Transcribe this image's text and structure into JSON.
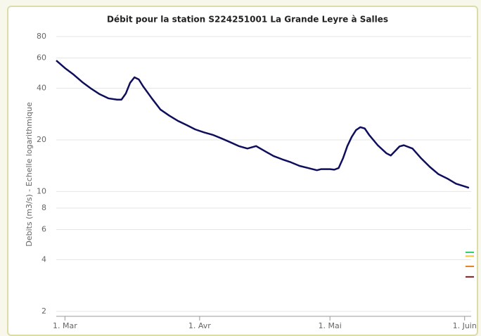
{
  "chart_data": {
    "type": "line",
    "title": "Débit pour la station S224251001 La Grande Leyre à Salles",
    "y_label": "Debits (m3/s) - Echelle logarithmique",
    "log_y": true,
    "grid": true,
    "xlim": [
      -2,
      93.5
    ],
    "xticks": [
      {
        "value": 0,
        "label": "1. Mar"
      },
      {
        "value": 31,
        "label": "1. Avr"
      },
      {
        "value": 61,
        "label": "1. Mai"
      },
      {
        "value": 92,
        "label": "1. Juin"
      }
    ],
    "ylim": [
      2,
      80
    ],
    "yticks": [
      2,
      4,
      6,
      8,
      10,
      20,
      40,
      60,
      80
    ],
    "x": [
      -2,
      0,
      2,
      4,
      6,
      8,
      10,
      12,
      13,
      14,
      15,
      16,
      17,
      18,
      20,
      22,
      24,
      26,
      28,
      30,
      32,
      34,
      36,
      38,
      40,
      42,
      44,
      46,
      48,
      50,
      52,
      54,
      56,
      58,
      59,
      61,
      62,
      63,
      64,
      65,
      66,
      67,
      68,
      69,
      70,
      72,
      74,
      75,
      76,
      77,
      78,
      80,
      82,
      84,
      86,
      88,
      90,
      92,
      93
    ],
    "series": [
      {
        "color": "#0e0e5c",
        "values": [
          58,
          52.4,
          48,
          43.4,
          39.8,
          36.9,
          34.9,
          34.3,
          34.3,
          37.2,
          43,
          46.3,
          45,
          41,
          34.9,
          30,
          27.7,
          25.8,
          24.4,
          23,
          22.1,
          21.4,
          20.4,
          19.4,
          18.4,
          17.8,
          18.4,
          17.2,
          16.1,
          15.4,
          14.8,
          14.1,
          13.7,
          13.3,
          13.5,
          13.5,
          13.4,
          13.7,
          15.6,
          18.4,
          20.8,
          22.8,
          23.7,
          23.3,
          21.4,
          18.6,
          16.7,
          16.2,
          17.2,
          18.3,
          18.6,
          17.8,
          15.6,
          13.9,
          12.6,
          11.9,
          11.1,
          10.7,
          10.5
        ]
      }
    ],
    "thresholds": [
      {
        "value": 4.42,
        "color": "#2ecc71"
      },
      {
        "value": 4.2,
        "color": "#f5c542"
      },
      {
        "value": 3.66,
        "color": "#e67e22"
      },
      {
        "value": 3.18,
        "color": "#8b1a1a"
      }
    ]
  }
}
